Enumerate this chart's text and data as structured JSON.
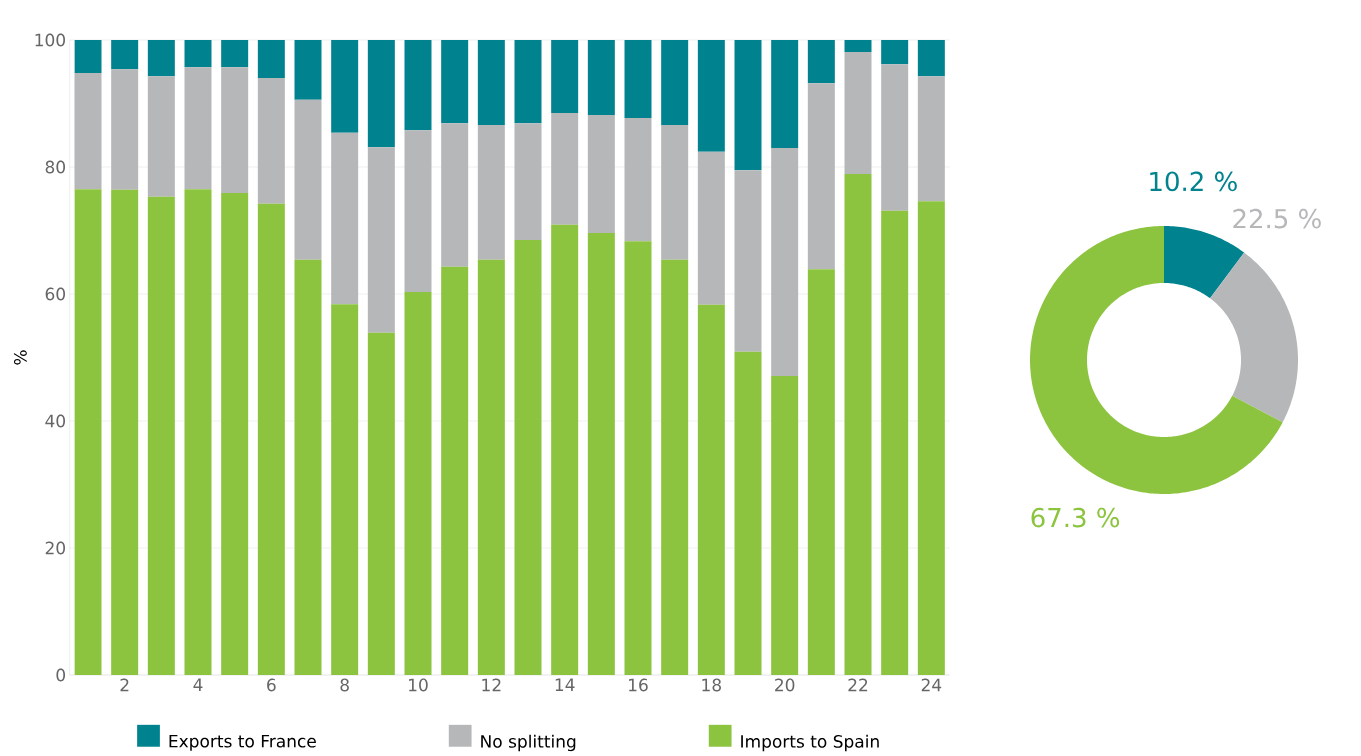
{
  "chart_data": [
    {
      "type": "bar",
      "stacked": true,
      "ylabel": "%",
      "categories": [
        null,
        "2",
        null,
        "4",
        null,
        "6",
        null,
        "8",
        null,
        "10",
        null,
        "12",
        null,
        "14",
        null,
        "16",
        null,
        "18",
        null,
        "20",
        null,
        "22",
        null,
        "24"
      ],
      "series": [
        {
          "name": "Imports to Spain",
          "color": "#8cc43f",
          "values": [
            76.5,
            76.4,
            75.3,
            76.5,
            75.9,
            74.2,
            65.4,
            58.4,
            53.9,
            60.3,
            64.3,
            65.4,
            68.5,
            70.9,
            69.6,
            68.3,
            65.4,
            58.3,
            50.9,
            47.1,
            63.9,
            78.9,
            73.1,
            74.6
          ]
        },
        {
          "name": "No splitting",
          "color": "#b6b7b9",
          "values": [
            18.3,
            19.0,
            19.0,
            19.2,
            19.8,
            19.8,
            25.2,
            27.0,
            29.2,
            25.5,
            22.6,
            21.2,
            18.4,
            17.6,
            18.6,
            19.4,
            21.2,
            24.1,
            28.6,
            35.9,
            29.3,
            19.2,
            23.1,
            19.7
          ]
        },
        {
          "name": "Exports to France",
          "color": "#00838f",
          "values": [
            5.2,
            4.6,
            5.7,
            4.3,
            4.3,
            6.0,
            9.4,
            14.6,
            16.9,
            14.2,
            13.1,
            13.4,
            13.1,
            11.5,
            11.8,
            12.3,
            13.4,
            17.6,
            20.5,
            17.0,
            6.8,
            1.9,
            3.8,
            5.7
          ]
        }
      ],
      "ylim": [
        0,
        100
      ],
      "yticks": [
        0,
        20,
        40,
        60,
        80,
        100
      ],
      "grid": "y",
      "legend": "bottom"
    },
    {
      "type": "donut",
      "categories": [
        null,
        null,
        null
      ],
      "values": [
        10.2,
        22.5,
        67.3
      ],
      "colors": [
        "#00838f",
        "#b6b7b9",
        "#8cc43f"
      ],
      "value_labels": [
        "10.2 %",
        "22.5 %",
        "67.3 %"
      ]
    }
  ]
}
